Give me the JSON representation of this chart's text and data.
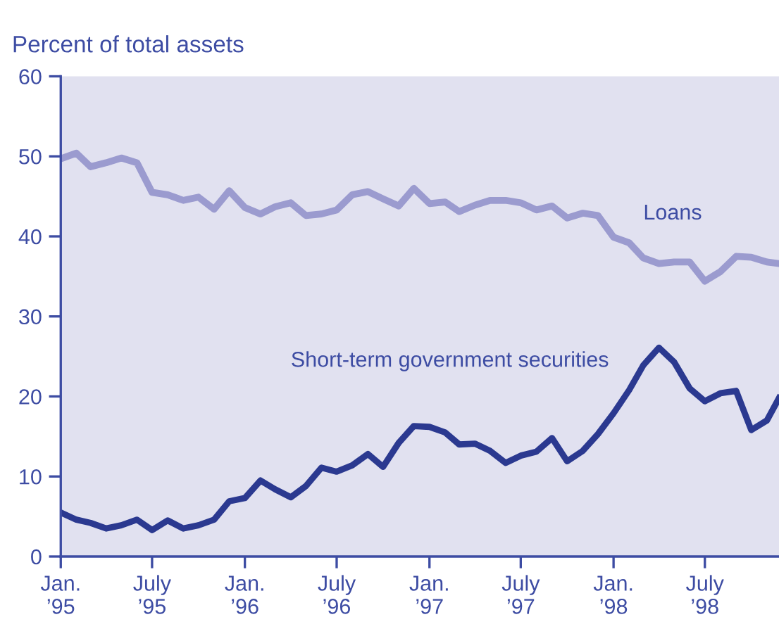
{
  "chart_data": {
    "type": "line",
    "ylabel": "Percent of total assets",
    "x": [
      "1995-01-01",
      "1995-02-01",
      "1995-03-01",
      "1995-04-01",
      "1995-05-01",
      "1995-06-01",
      "1995-07-01",
      "1995-08-01",
      "1995-09-01",
      "1995-10-01",
      "1995-11-01",
      "1995-12-01",
      "1996-01-01",
      "1996-02-01",
      "1996-03-01",
      "1996-04-01",
      "1996-05-01",
      "1996-06-01",
      "1996-07-01",
      "1996-08-01",
      "1996-09-01",
      "1996-10-01",
      "1996-11-01",
      "1996-12-01",
      "1997-01-01",
      "1997-02-01",
      "1997-03-01",
      "1997-04-01",
      "1997-05-01",
      "1997-06-01",
      "1997-07-01",
      "1997-08-01",
      "1997-09-01",
      "1997-10-01",
      "1997-11-01",
      "1997-12-01",
      "1998-01-01",
      "1998-02-01",
      "1998-03-01",
      "1998-04-01",
      "1998-05-01",
      "1998-06-01",
      "1998-07-01",
      "1998-08-01",
      "1998-09-01",
      "1998-10-01",
      "1998-11-01",
      "1998-11-25"
    ],
    "series": [
      {
        "name": "Loans",
        "color": "#9b9bcf",
        "values": [
          49.7,
          50.4,
          48.7,
          49.2,
          49.8,
          49.2,
          45.5,
          45.2,
          44.5,
          44.9,
          43.4,
          45.7,
          43.6,
          42.8,
          43.7,
          44.2,
          42.6,
          42.8,
          43.3,
          45.2,
          45.6,
          44.7,
          43.8,
          46.0,
          44.1,
          44.3,
          43.1,
          43.9,
          44.5,
          44.5,
          44.2,
          43.3,
          43.8,
          42.3,
          42.9,
          42.6,
          39.9,
          39.2,
          37.3,
          36.6,
          36.8,
          36.8,
          34.4,
          35.6,
          37.5,
          37.4,
          36.8,
          36.6
        ]
      },
      {
        "name": "Short-term government securities",
        "color": "#2b3990",
        "values": [
          5.5,
          4.6,
          4.2,
          3.5,
          3.9,
          4.6,
          3.3,
          4.5,
          3.5,
          3.9,
          4.6,
          6.9,
          7.3,
          9.5,
          8.4,
          7.4,
          8.8,
          11.1,
          10.6,
          11.4,
          12.8,
          11.2,
          14.2,
          16.3,
          16.2,
          15.5,
          14.0,
          14.1,
          13.2,
          11.7,
          12.6,
          13.1,
          14.8,
          11.9,
          13.2,
          15.3,
          17.9,
          20.8,
          23.9,
          26.1,
          24.3,
          21.0,
          19.4,
          20.4,
          20.7,
          15.8,
          17.0,
          19.8
        ]
      }
    ],
    "xlim": [
      "1995-01-01",
      "1998-11-25"
    ],
    "xticks": [
      {
        "value": "1995-01-01",
        "label": "Jan.\n’95"
      },
      {
        "value": "1995-07-01",
        "label": "July\n’95"
      },
      {
        "value": "1996-01-01",
        "label": "Jan.\n’96"
      },
      {
        "value": "1996-07-01",
        "label": "July\n’96"
      },
      {
        "value": "1997-01-01",
        "label": "Jan.\n’97"
      },
      {
        "value": "1997-07-01",
        "label": "July\n’97"
      },
      {
        "value": "1998-01-01",
        "label": "Jan.\n’98"
      },
      {
        "value": "1998-07-01",
        "label": "July\n’98"
      }
    ],
    "ylim": [
      0,
      60
    ],
    "yticks": [
      0,
      10,
      20,
      30,
      40,
      50,
      60
    ],
    "grid": false,
    "legend": false
  }
}
